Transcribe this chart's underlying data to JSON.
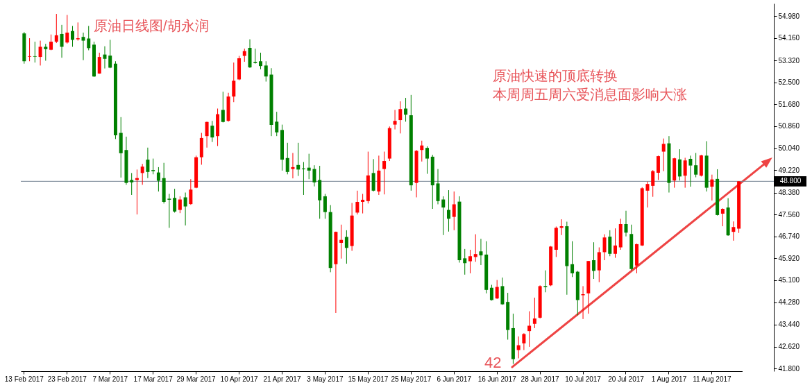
{
  "chart_data": {
    "type": "candlestick",
    "title": "原油日线图/胡永润",
    "annotations": [
      "原油快速的顶底转换",
      "本周周五周六受消息面影响大涨",
      "42"
    ],
    "categories": [
      "13 Feb 2017",
      null,
      null,
      null,
      null,
      null,
      null,
      null,
      "23 Feb 2017",
      null,
      null,
      null,
      null,
      null,
      null,
      null,
      "7 Mar 2017",
      null,
      null,
      null,
      null,
      null,
      null,
      null,
      "17 Mar 2017",
      null,
      null,
      null,
      null,
      null,
      null,
      null,
      "29 Mar 2017",
      null,
      null,
      null,
      null,
      null,
      null,
      null,
      "10 Apr 2017",
      null,
      null,
      null,
      null,
      null,
      null,
      null,
      "21 Apr 2017",
      null,
      null,
      null,
      null,
      null,
      null,
      null,
      "3 May 2017",
      null,
      null,
      null,
      null,
      null,
      null,
      null,
      "15 May 2017",
      null,
      null,
      null,
      null,
      null,
      null,
      null,
      "25 May 2017",
      null,
      null,
      null,
      null,
      null,
      null,
      null,
      "6 Jun 2017",
      null,
      null,
      null,
      null,
      null,
      null,
      null,
      "16 Jun 2017",
      null,
      null,
      null,
      null,
      null,
      null,
      null,
      "28 Jun 2017",
      null,
      null,
      null,
      null,
      null,
      null,
      null,
      "10 Jul 2017",
      null,
      null,
      null,
      null,
      null,
      null,
      null,
      "20 Jul 2017",
      null,
      null,
      null,
      null,
      null,
      null,
      null,
      "1 Aug 2017",
      null,
      null,
      null,
      null,
      null,
      null,
      null,
      "11 Aug 2017",
      null,
      null,
      null,
      null,
      null
    ],
    "ohlc": [
      [
        54.33,
        54.38,
        53.2,
        53.29
      ],
      [
        53.46,
        54.15,
        53.29,
        53.48
      ],
      [
        53.48,
        54.02,
        53.24,
        53.46
      ],
      [
        53.45,
        54.06,
        53.13,
        53.83
      ],
      [
        53.83,
        53.94,
        53.31,
        53.74
      ],
      [
        53.72,
        54.29,
        53.7,
        54.02
      ],
      [
        54.02,
        55.06,
        53.97,
        54.26
      ],
      [
        54.31,
        54.65,
        53.42,
        53.83
      ],
      [
        53.99,
        55.02,
        53.95,
        54.36
      ],
      [
        54.42,
        54.61,
        53.83,
        54.09
      ],
      [
        54.11,
        54.74,
        54.06,
        54.15
      ],
      [
        54.2,
        54.36,
        53.33,
        54.06
      ],
      [
        54.14,
        54.61,
        53.7,
        53.78
      ],
      [
        53.91,
        54.02,
        52.7,
        52.72
      ],
      [
        52.83,
        53.61,
        52.82,
        53.45
      ],
      [
        53.54,
        53.85,
        53.02,
        53.38
      ],
      [
        53.5,
        54.09,
        53.03,
        53.05
      ],
      [
        53.2,
        53.29,
        50.38,
        50.52
      ],
      [
        50.61,
        51.2,
        48.94,
        49.85
      ],
      [
        49.97,
        50.47,
        48.67,
        48.74
      ],
      [
        48.85,
        49.11,
        48.29,
        48.76
      ],
      [
        48.85,
        49.24,
        47.56,
        48.92
      ],
      [
        49.11,
        49.45,
        48.67,
        49.35
      ],
      [
        49.61,
        50.06,
        48.92,
        49.15
      ],
      [
        49.22,
        49.65,
        49.06,
        49.18
      ],
      [
        49.13,
        49.33,
        48.42,
        48.82
      ],
      [
        48.92,
        49.49,
        47.97,
        48.03
      ],
      [
        48.15,
        48.33,
        47.06,
        48.11
      ],
      [
        48.18,
        48.52,
        47.63,
        47.67
      ],
      [
        47.73,
        48.24,
        47.61,
        48.12
      ],
      [
        48.2,
        48.38,
        47.15,
        47.86
      ],
      [
        47.95,
        48.88,
        47.92,
        48.49
      ],
      [
        48.56,
        49.76,
        48.54,
        49.7
      ],
      [
        49.7,
        50.61,
        49.42,
        50.42
      ],
      [
        50.49,
        51.03,
        50.06,
        51.02
      ],
      [
        50.88,
        51.06,
        50.27,
        50.44
      ],
      [
        50.49,
        51.52,
        50.12,
        51.31
      ],
      [
        51.47,
        52.15,
        51.0,
        51.02
      ],
      [
        51.06,
        52.11,
        51.03,
        51.97
      ],
      [
        51.97,
        53.24,
        51.76,
        52.56
      ],
      [
        52.61,
        53.49,
        52.58,
        53.4
      ],
      [
        53.49,
        53.76,
        53.27,
        53.67
      ],
      [
        53.79,
        54.11,
        53.04,
        53.06
      ],
      [
        53.26,
        53.76,
        53.2,
        53.22
      ],
      [
        53.29,
        53.61,
        52.99,
        53.11
      ],
      [
        53.13,
        53.29,
        52.53,
        52.72
      ],
      [
        52.79,
        53.03,
        50.49,
        50.91
      ],
      [
        51.03,
        51.4,
        50.49,
        50.63
      ],
      [
        50.72,
        50.92,
        49.2,
        49.61
      ],
      [
        49.67,
        50.24,
        49.06,
        49.15
      ],
      [
        49.26,
        49.86,
        48.91,
        49.33
      ],
      [
        49.41,
        50.24,
        49.0,
        49.24
      ],
      [
        49.28,
        49.52,
        48.29,
        49.25
      ],
      [
        49.31,
        49.83,
        48.88,
        49.2
      ],
      [
        49.26,
        49.4,
        48.61,
        48.76
      ],
      [
        48.85,
        49.38,
        47.4,
        48.09
      ],
      [
        48.24,
        48.33,
        47.4,
        47.65
      ],
      [
        47.65,
        47.91,
        45.4,
        45.56
      ],
      [
        45.7,
        46.92,
        43.88,
        46.91
      ],
      [
        46.5,
        47.18,
        45.91,
        46.61
      ],
      [
        46.72,
        46.97,
        45.72,
        46.31
      ],
      [
        46.38,
        47.99,
        46.2,
        47.52
      ],
      [
        47.63,
        48.45,
        47.56,
        48.03
      ],
      [
        48.03,
        48.33,
        47.6,
        48.11
      ],
      [
        48.06,
        49.91,
        47.97,
        49.02
      ],
      [
        49.11,
        49.63,
        48.42,
        48.45
      ],
      [
        48.42,
        49.76,
        48.29,
        49.2
      ],
      [
        49.26,
        49.91,
        48.31,
        49.56
      ],
      [
        49.65,
        50.85,
        49.56,
        50.79
      ],
      [
        50.92,
        51.47,
        50.74,
        51.06
      ],
      [
        51.09,
        51.79,
        50.59,
        51.5
      ],
      [
        51.52,
        51.92,
        51.03,
        51.29
      ],
      [
        51.27,
        52.03,
        48.45,
        48.65
      ],
      [
        48.74,
        49.97,
        48.2,
        49.94
      ],
      [
        49.97,
        50.32,
        49.54,
        50.14
      ],
      [
        50.05,
        50.11,
        49.08,
        49.65
      ],
      [
        49.72,
        49.79,
        47.77,
        48.65
      ],
      [
        48.72,
        49.26,
        47.94,
        48.06
      ],
      [
        48.12,
        48.24,
        46.79,
        47.82
      ],
      [
        47.73,
        48.47,
        46.92,
        47.4
      ],
      [
        47.47,
        48.42,
        46.97,
        47.94
      ],
      [
        48.04,
        48.24,
        45.76,
        45.85
      ],
      [
        45.92,
        46.27,
        45.31,
        45.74
      ],
      [
        45.81,
        46.24,
        45.36,
        46.0
      ],
      [
        45.97,
        46.82,
        45.79,
        46.08
      ],
      [
        46.18,
        46.65,
        45.67,
        46.03
      ],
      [
        46.06,
        46.56,
        44.61,
        44.74
      ],
      [
        44.82,
        44.93,
        44.34,
        44.36
      ],
      [
        44.42,
        45.11,
        44.4,
        44.85
      ],
      [
        44.88,
        45.2,
        44.18,
        44.2
      ],
      [
        44.29,
        44.63,
        42.88,
        43.24
      ],
      [
        43.31,
        43.85,
        41.97,
        42.15
      ],
      [
        42.49,
        43.0,
        42.18,
        42.67
      ],
      [
        42.74,
        43.12,
        42.49,
        43.09
      ],
      [
        43.2,
        43.94,
        42.61,
        43.4
      ],
      [
        43.47,
        44.45,
        43.31,
        43.67
      ],
      [
        43.7,
        44.91,
        43.67,
        44.88
      ],
      [
        44.88,
        45.47,
        44.65,
        44.84
      ],
      [
        44.91,
        46.38,
        44.88,
        46.36
      ],
      [
        46.24,
        47.11,
        45.97,
        47.06
      ],
      [
        47.06,
        47.38,
        46.79,
        47.12
      ],
      [
        47.12,
        47.29,
        44.56,
        45.63
      ],
      [
        45.7,
        46.56,
        45.22,
        45.36
      ],
      [
        45.42,
        45.45,
        43.79,
        44.36
      ],
      [
        44.54,
        44.88,
        43.65,
        44.58
      ],
      [
        44.61,
        45.82,
        43.85,
        45.82
      ],
      [
        45.85,
        46.52,
        45.15,
        45.45
      ],
      [
        45.47,
        46.33,
        45.03,
        46.15
      ],
      [
        46.15,
        46.82,
        45.85,
        46.7
      ],
      [
        46.73,
        46.97,
        46.0,
        46.09
      ],
      [
        46.09,
        47.04,
        45.94,
        46.4
      ],
      [
        46.33,
        47.4,
        46.24,
        47.2
      ],
      [
        47.2,
        47.7,
        46.74,
        46.88
      ],
      [
        46.83,
        47.18,
        45.47,
        45.52
      ],
      [
        45.65,
        46.47,
        45.36,
        46.45
      ],
      [
        46.4,
        48.58,
        46.38,
        48.54
      ],
      [
        48.45,
        48.79,
        47.82,
        48.7
      ],
      [
        48.63,
        49.22,
        48.22,
        49.18
      ],
      [
        49.12,
        49.76,
        48.85,
        49.74
      ],
      [
        49.91,
        50.4,
        49.18,
        50.2
      ],
      [
        50.22,
        50.49,
        48.38,
        48.74
      ],
      [
        48.83,
        49.68,
        48.56,
        49.66
      ],
      [
        49.62,
        50.0,
        48.83,
        48.98
      ],
      [
        49.01,
        49.68,
        48.56,
        49.58
      ],
      [
        49.64,
        49.76,
        48.6,
        49.39
      ],
      [
        49.4,
        49.86,
        48.95,
        49.05
      ],
      [
        49.01,
        49.79,
        48.98,
        49.77
      ],
      [
        49.76,
        50.3,
        48.42,
        48.56
      ],
      [
        48.6,
        49.05,
        48.08,
        48.87
      ],
      [
        48.89,
        49.25,
        47.52,
        47.54
      ],
      [
        47.59,
        47.79,
        47.12,
        47.77
      ],
      [
        47.82,
        48.17,
        46.76,
        46.78
      ],
      [
        46.91,
        47.3,
        46.58,
        47.09
      ],
      [
        47.03,
        48.8,
        46.87,
        48.8
      ]
    ],
    "colors": [
      "#008000",
      "#ff0000",
      "#008000",
      "#ff0000",
      "#008000",
      "#ff0000",
      "#ff0000",
      "#008000",
      "#ff0000",
      "#008000",
      "#ff0000",
      "#008000",
      "#008000",
      "#008000",
      "#ff0000",
      "#008000",
      "#008000",
      "#008000",
      "#008000",
      "#008000",
      "#008000",
      "#ff0000",
      "#ff0000",
      "#008000",
      "#008000",
      "#008000",
      "#008000",
      "#008000",
      "#008000",
      "#ff0000",
      "#008000",
      "#ff0000",
      "#ff0000",
      "#ff0000",
      "#ff0000",
      "#008000",
      "#ff0000",
      "#008000",
      "#ff0000",
      "#ff0000",
      "#ff0000",
      "#ff0000",
      "#008000",
      "#008000",
      "#008000",
      "#008000",
      "#008000",
      "#008000",
      "#008000",
      "#008000",
      "#ff0000",
      "#008000",
      "#008000",
      "#008000",
      "#008000",
      "#008000",
      "#008000",
      "#008000",
      "#ff0000",
      "#ff0000",
      "#008000",
      "#ff0000",
      "#ff0000",
      "#ff0000",
      "#ff0000",
      "#008000",
      "#ff0000",
      "#ff0000",
      "#ff0000",
      "#ff0000",
      "#ff0000",
      "#008000",
      "#008000",
      "#ff0000",
      "#ff0000",
      "#008000",
      "#008000",
      "#008000",
      "#008000",
      "#008000",
      "#ff0000",
      "#008000",
      "#008000",
      "#ff0000",
      "#ff0000",
      "#008000",
      "#008000",
      "#008000",
      "#ff0000",
      "#008000",
      "#008000",
      "#008000",
      "#ff0000",
      "#ff0000",
      "#ff0000",
      "#ff0000",
      "#ff0000",
      "#008000",
      "#ff0000",
      "#ff0000",
      "#ff0000",
      "#008000",
      "#008000",
      "#008000",
      "#ff0000",
      "#ff0000",
      "#008000",
      "#ff0000",
      "#ff0000",
      "#008000",
      "#ff0000",
      "#ff0000",
      "#008000",
      "#008000",
      "#ff0000",
      "#ff0000",
      "#ff0000",
      "#ff0000",
      "#ff0000",
      "#ff0000",
      "#008000",
      "#ff0000",
      "#008000",
      "#ff0000",
      "#008000",
      "#008000",
      "#ff0000",
      "#008000",
      "#ff0000",
      "#008000",
      "#ff0000",
      "#008000",
      "#ff0000",
      "#ff0000"
    ],
    "ylim": [
      41.7,
      55.45
    ],
    "yticks": [
      {
        "value": 41.8,
        "label": "41.800"
      },
      {
        "value": 42.62,
        "label": "42.620"
      },
      {
        "value": 43.44,
        "label": "43.440"
      },
      {
        "value": 44.28,
        "label": "44.280"
      },
      {
        "value": 45.1,
        "label": "45.100"
      },
      {
        "value": 45.92,
        "label": "45.920"
      },
      {
        "value": 46.74,
        "label": "46.740"
      },
      {
        "value": 47.56,
        "label": "47.560"
      },
      {
        "value": 48.38,
        "label": "48.380"
      },
      {
        "value": 49.22,
        "label": "49.220"
      },
      {
        "value": 50.04,
        "label": "50.040"
      },
      {
        "value": 50.86,
        "label": "50.860"
      },
      {
        "value": 51.68,
        "label": "51.680"
      },
      {
        "value": 52.5,
        "label": "52.500"
      },
      {
        "value": 53.32,
        "label": "53.320"
      },
      {
        "value": 54.16,
        "label": "54.160"
      },
      {
        "value": 54.98,
        "label": "54.980"
      }
    ],
    "ref_lines": [
      {
        "axis": "y",
        "value": 48.8,
        "label": "48.800",
        "color": "#708090"
      }
    ]
  }
}
